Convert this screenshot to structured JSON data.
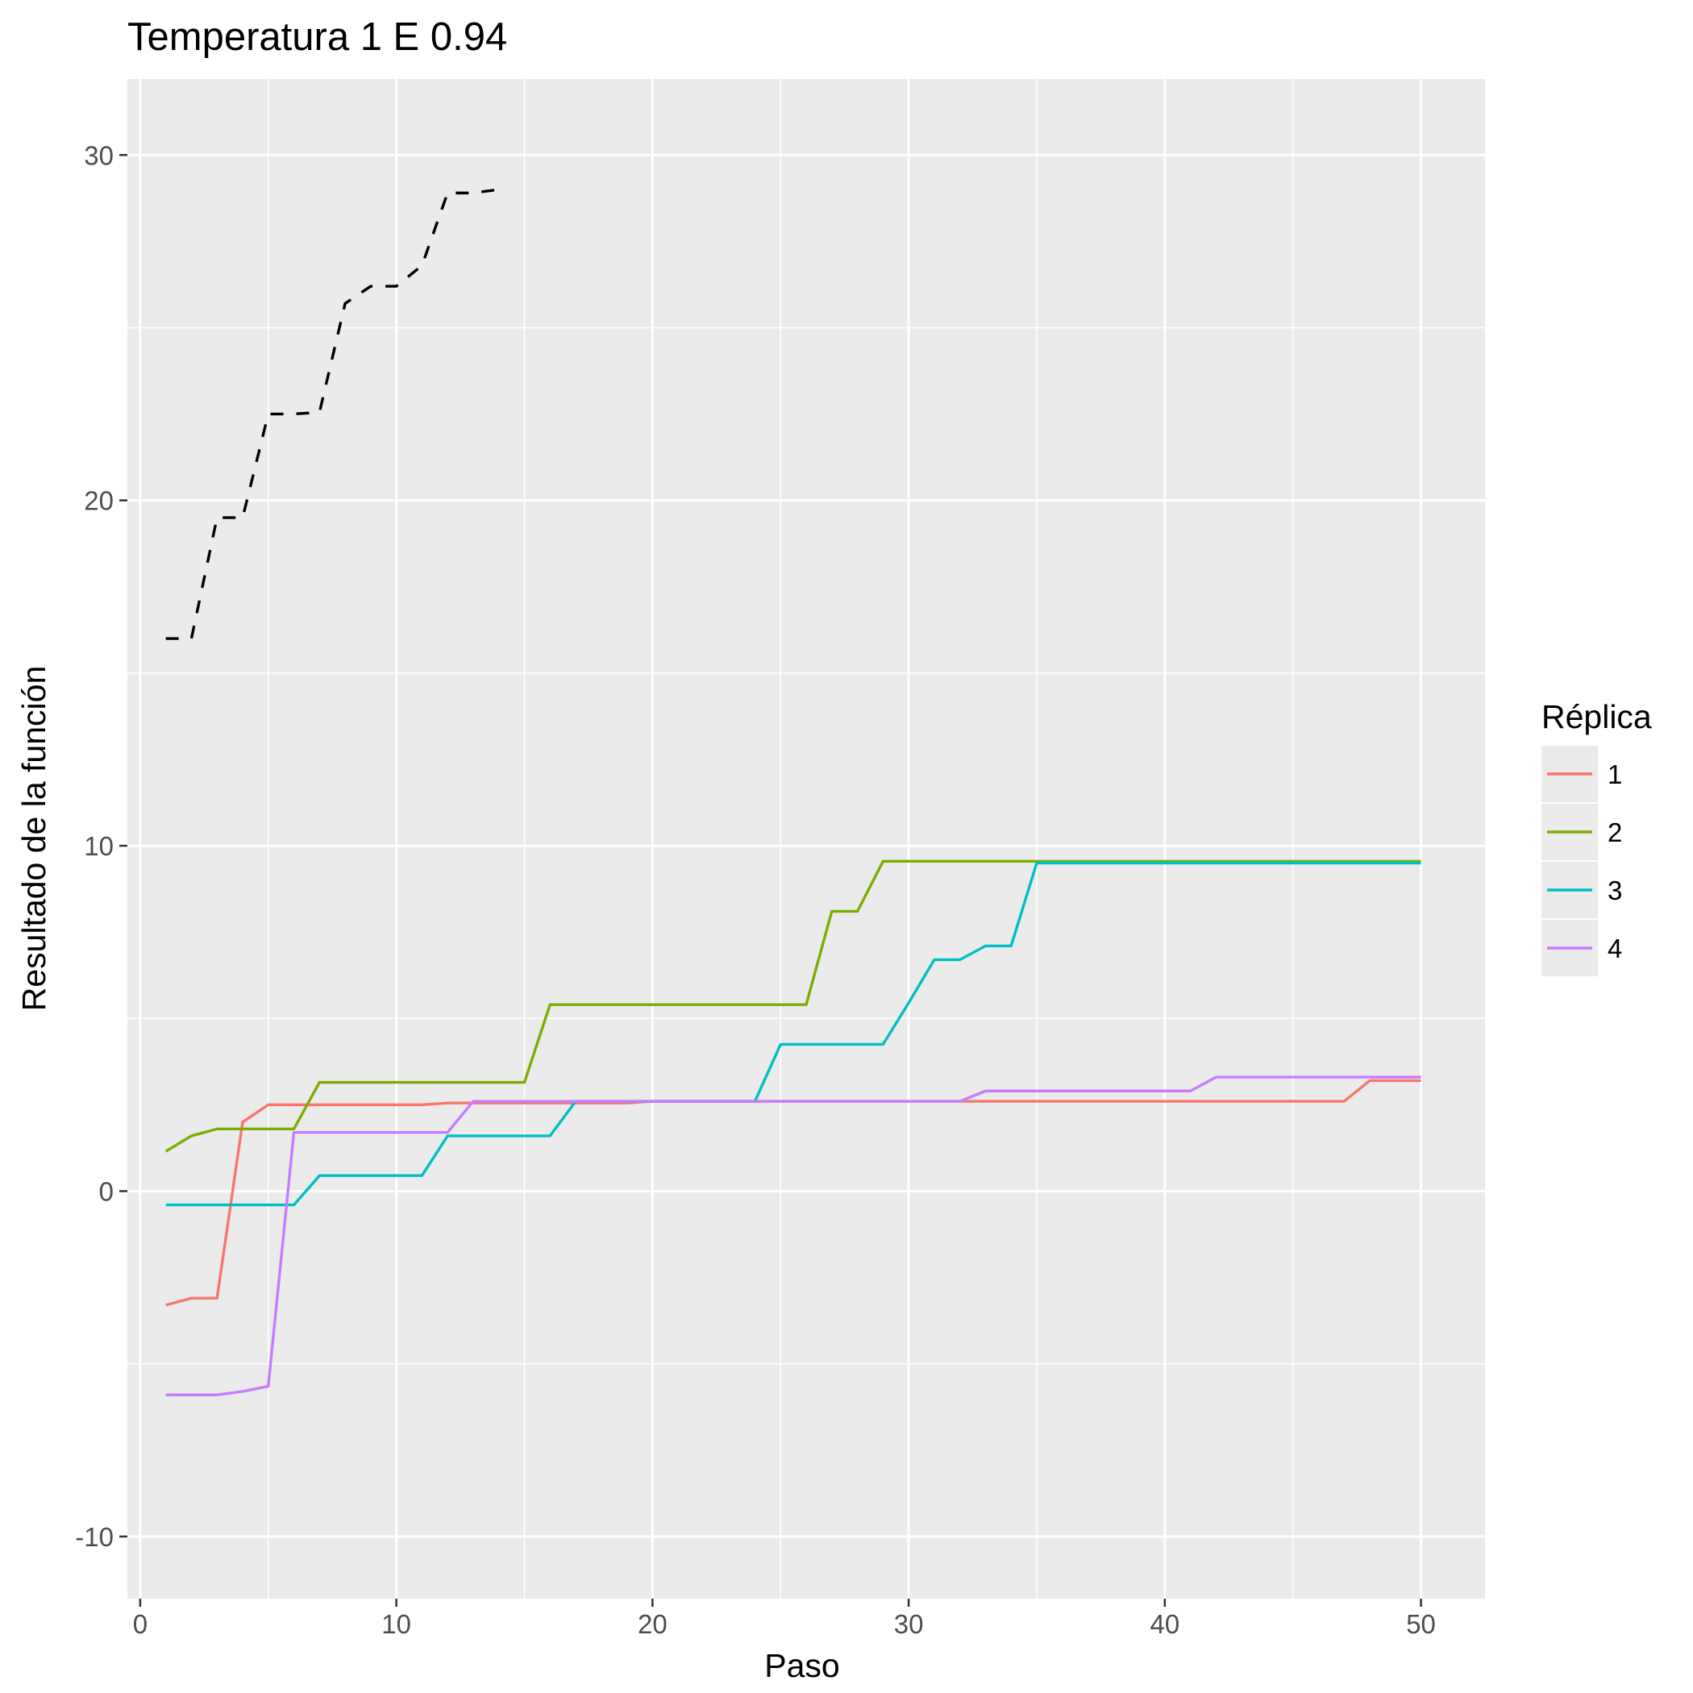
{
  "chart_data": {
    "type": "line",
    "title": "Temperatura 1 E 0.94",
    "xlabel": "Paso",
    "ylabel": "Resultado de la función",
    "xlim": [
      -0.5,
      52.5
    ],
    "ylim": [
      -11.8,
      32.2
    ],
    "x_ticks": [
      0,
      10,
      20,
      30,
      40,
      50
    ],
    "x_tick_labels": [
      "0",
      "10",
      "20",
      "30",
      "40",
      "50"
    ],
    "x_minor_ticks": [
      5,
      15,
      25,
      35,
      45
    ],
    "y_ticks": [
      -10,
      0,
      10,
      20,
      30
    ],
    "y_tick_labels": [
      "-10",
      "0",
      "10",
      "20",
      "30"
    ],
    "y_minor_ticks": [
      -5,
      5,
      15,
      25
    ],
    "grid": true,
    "panel_background": "#ebebeb",
    "legend": {
      "title": "Réplica",
      "position": "right"
    },
    "series": [
      {
        "name": "1",
        "color": "#f8766d",
        "dash": "solid",
        "x": [
          1,
          2,
          3,
          4,
          5,
          6,
          7,
          8,
          9,
          10,
          11,
          12,
          13,
          14,
          15,
          16,
          17,
          18,
          19,
          20,
          21,
          22,
          23,
          24,
          25,
          26,
          27,
          28,
          29,
          30,
          31,
          32,
          33,
          34,
          35,
          36,
          37,
          38,
          39,
          40,
          41,
          42,
          43,
          44,
          45,
          46,
          47,
          48,
          49,
          50
        ],
        "y": [
          -3.3,
          -3.1,
          -3.1,
          2.0,
          2.5,
          2.5,
          2.5,
          2.5,
          2.5,
          2.5,
          2.5,
          2.55,
          2.55,
          2.55,
          2.55,
          2.55,
          2.55,
          2.55,
          2.55,
          2.6,
          2.6,
          2.6,
          2.6,
          2.6,
          2.6,
          2.6,
          2.6,
          2.6,
          2.6,
          2.6,
          2.6,
          2.6,
          2.6,
          2.6,
          2.6,
          2.6,
          2.6,
          2.6,
          2.6,
          2.6,
          2.6,
          2.6,
          2.6,
          2.6,
          2.6,
          2.6,
          2.6,
          3.2,
          3.2,
          3.2
        ]
      },
      {
        "name": "2",
        "color": "#7cae00",
        "dash": "solid",
        "x": [
          1,
          2,
          3,
          4,
          5,
          6,
          7,
          8,
          9,
          10,
          11,
          12,
          13,
          14,
          15,
          16,
          17,
          18,
          19,
          20,
          21,
          22,
          23,
          24,
          25,
          26,
          27,
          28,
          29,
          30,
          31,
          32,
          33,
          34,
          35,
          36,
          37,
          38,
          39,
          40,
          41,
          42,
          43,
          44,
          45,
          46,
          47,
          48,
          49,
          50
        ],
        "y": [
          1.15,
          1.6,
          1.8,
          1.8,
          1.8,
          1.8,
          3.15,
          3.15,
          3.15,
          3.15,
          3.15,
          3.15,
          3.15,
          3.15,
          3.15,
          5.4,
          5.4,
          5.4,
          5.4,
          5.4,
          5.4,
          5.4,
          5.4,
          5.4,
          5.4,
          5.4,
          8.1,
          8.1,
          9.55,
          9.55,
          9.55,
          9.55,
          9.55,
          9.55,
          9.55,
          9.55,
          9.55,
          9.55,
          9.55,
          9.55,
          9.55,
          9.55,
          9.55,
          9.55,
          9.55,
          9.55,
          9.55,
          9.55,
          9.55,
          9.55
        ]
      },
      {
        "name": "3",
        "color": "#00bfc4",
        "dash": "solid",
        "x": [
          1,
          2,
          3,
          4,
          5,
          6,
          7,
          8,
          9,
          10,
          11,
          12,
          13,
          14,
          15,
          16,
          17,
          18,
          19,
          20,
          21,
          22,
          23,
          24,
          25,
          26,
          27,
          28,
          29,
          30,
          31,
          32,
          33,
          34,
          35,
          36,
          37,
          38,
          39,
          40,
          41,
          42,
          43,
          44,
          45,
          46,
          47,
          48,
          49,
          50
        ],
        "y": [
          -0.4,
          -0.4,
          -0.4,
          -0.4,
          -0.4,
          -0.4,
          0.45,
          0.45,
          0.45,
          0.45,
          0.45,
          1.6,
          1.6,
          1.6,
          1.6,
          1.6,
          2.6,
          2.6,
          2.6,
          2.6,
          2.6,
          2.6,
          2.6,
          2.6,
          4.25,
          4.25,
          4.25,
          4.25,
          4.25,
          5.45,
          6.7,
          6.7,
          7.1,
          7.1,
          9.5,
          9.5,
          9.5,
          9.5,
          9.5,
          9.5,
          9.5,
          9.5,
          9.5,
          9.5,
          9.5,
          9.5,
          9.5,
          9.5,
          9.5,
          9.5
        ]
      },
      {
        "name": "4",
        "color": "#c77cff",
        "dash": "solid",
        "x": [
          1,
          2,
          3,
          4,
          5,
          6,
          7,
          8,
          9,
          10,
          11,
          12,
          13,
          14,
          15,
          16,
          17,
          18,
          19,
          20,
          21,
          22,
          23,
          24,
          25,
          26,
          27,
          28,
          29,
          30,
          31,
          32,
          33,
          34,
          35,
          36,
          37,
          38,
          39,
          40,
          41,
          42,
          43,
          44,
          45,
          46,
          47,
          48,
          49,
          50
        ],
        "y": [
          -5.9,
          -5.9,
          -5.9,
          -5.8,
          -5.65,
          1.7,
          1.7,
          1.7,
          1.7,
          1.7,
          1.7,
          1.7,
          2.6,
          2.6,
          2.6,
          2.6,
          2.6,
          2.6,
          2.6,
          2.6,
          2.6,
          2.6,
          2.6,
          2.6,
          2.6,
          2.6,
          2.6,
          2.6,
          2.6,
          2.6,
          2.6,
          2.6,
          2.9,
          2.9,
          2.9,
          2.9,
          2.9,
          2.9,
          2.9,
          2.9,
          2.9,
          3.3,
          3.3,
          3.3,
          3.3,
          3.3,
          3.3,
          3.3,
          3.3,
          3.3
        ]
      },
      {
        "color": "#000000",
        "dash": "dashed",
        "x": [
          1,
          2,
          3,
          4,
          5,
          6,
          7,
          8,
          9,
          10,
          11,
          12,
          13,
          14
        ],
        "y": [
          16.0,
          16.0,
          19.5,
          19.5,
          22.5,
          22.5,
          22.55,
          25.7,
          26.2,
          26.2,
          26.8,
          28.9,
          28.9,
          29.0
        ]
      }
    ]
  }
}
